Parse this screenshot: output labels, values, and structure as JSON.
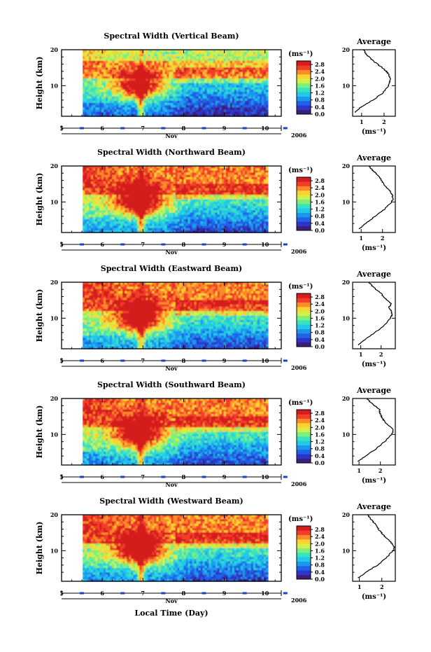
{
  "chart_data": {
    "type": "heatmap",
    "colorbar": {
      "unit": "(ms⁻¹)",
      "ticks": [
        "0.0",
        "0.4",
        "0.8",
        "1.2",
        "1.6",
        "2.0",
        "2.4",
        "2.8"
      ],
      "range": [
        0,
        3.0
      ],
      "colors": [
        "#3b1f7a",
        "#2d35c8",
        "#1f63e8",
        "#1b98ee",
        "#22c8e8",
        "#39e3c0",
        "#7ef07a",
        "#d3f04a",
        "#fbd233",
        "#fb8a2a",
        "#f23e29",
        "#d41d1d"
      ]
    },
    "x_axis": {
      "label": "Local Time (Day)",
      "month": "Nov",
      "year": "2006",
      "ticks": [
        "5",
        "6",
        "7",
        "8",
        "9",
        "10"
      ],
      "range": [
        5,
        10.4
      ]
    },
    "y_axis": {
      "label": "Height (km)",
      "ticks": [
        "20",
        "10"
      ],
      "range": [
        1.5,
        20
      ]
    },
    "avg_axis": {
      "title": "Average",
      "xlabel": "(ms⁻¹)",
      "yticks": [
        "20",
        "10"
      ]
    },
    "panels": [
      {
        "title": "Spectral Width (Vertical Beam)",
        "first_tick": "5",
        "avg_xticks": [
          "1",
          "2"
        ],
        "avg_xrange": [
          0.6,
          2.5
        ],
        "avg_profile": {
          "h": [
            2.5,
            4,
            6,
            8,
            10,
            11,
            12,
            13,
            14,
            15,
            16,
            17,
            18,
            19,
            20
          ],
          "v": [
            0.7,
            0.95,
            1.5,
            1.95,
            2.2,
            2.25,
            2.28,
            2.22,
            2.1,
            1.92,
            1.7,
            1.5,
            1.32,
            1.18,
            1.08
          ]
        }
      },
      {
        "title": "Spectral Width (Northward Beam)",
        "first_tick": "5",
        "avg_xticks": [
          "1",
          "2"
        ],
        "avg_xrange": [
          0.6,
          2.6
        ],
        "avg_profile": {
          "h": [
            2.5,
            4,
            6,
            8,
            10,
            11,
            12,
            13,
            14,
            15,
            16,
            17,
            18,
            19,
            20
          ],
          "v": [
            0.9,
            1.2,
            1.65,
            2.1,
            2.42,
            2.5,
            2.45,
            2.35,
            2.2,
            2.05,
            1.95,
            1.85,
            1.68,
            1.5,
            1.38
          ]
        }
      },
      {
        "title": "Spectral Width (Eastward Beam)",
        "first_tick": "5",
        "avg_xticks": [
          "1",
          "2"
        ],
        "avg_xrange": [
          0.6,
          2.7
        ],
        "avg_profile": {
          "h": [
            2.5,
            4,
            6,
            8,
            10,
            11,
            12,
            13,
            14,
            15,
            16,
            17,
            18,
            19,
            20
          ],
          "v": [
            0.85,
            1.2,
            1.7,
            2.15,
            2.45,
            2.55,
            2.5,
            2.38,
            2.5,
            2.3,
            2.1,
            2.0,
            1.75,
            1.55,
            1.4
          ]
        }
      },
      {
        "title": "Spectral Width (Southward Beam)",
        "first_tick": "5",
        "avg_xticks": [
          "1",
          "2"
        ],
        "avg_xrange": [
          0.7,
          2.7
        ],
        "avg_profile": {
          "h": [
            2.5,
            4,
            6,
            8,
            10,
            11,
            12,
            13,
            14,
            15,
            16,
            17,
            18,
            19,
            20
          ],
          "v": [
            0.95,
            1.3,
            1.8,
            2.2,
            2.52,
            2.6,
            2.5,
            2.3,
            2.15,
            2.05,
            1.98,
            1.95,
            1.72,
            1.52,
            1.38
          ]
        }
      },
      {
        "title": "Spectral Width (Westward Beam)",
        "first_tick": "5",
        "avg_xticks": [
          "1",
          "2"
        ],
        "avg_xrange": [
          0.7,
          2.6
        ],
        "avg_profile": {
          "h": [
            2.5,
            4,
            6,
            8,
            10,
            11,
            12,
            13,
            14,
            15,
            16,
            17,
            18,
            19,
            20
          ],
          "v": [
            0.95,
            1.3,
            1.8,
            2.2,
            2.5,
            2.55,
            2.45,
            2.3,
            2.12,
            1.98,
            1.85,
            1.78,
            1.62,
            1.48,
            1.36
          ]
        }
      }
    ]
  }
}
